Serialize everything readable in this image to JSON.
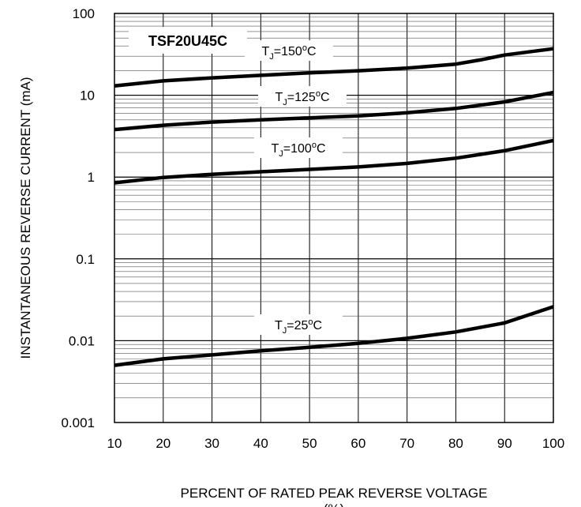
{
  "chart_data": {
    "type": "line",
    "title": "TSF20U45C",
    "xlabel": "PERCENT OF RATED PEAK REVERSE VOLTAGE",
    "xlabel_line2": "(%)",
    "ylabel": "INSTANTANEOUS REVERSE CURRENT (mA)",
    "x_scale": "linear",
    "y_scale": "log",
    "xlim": [
      10,
      100
    ],
    "ylim": [
      0.001,
      100
    ],
    "x_ticks": [
      "10",
      "20",
      "30",
      "40",
      "50",
      "60",
      "70",
      "80",
      "90",
      "100"
    ],
    "y_ticks": [
      "0.001",
      "0.01",
      "0.1",
      "1",
      "10",
      "100"
    ],
    "grid": true,
    "series": [
      {
        "name": "TJ=150oC",
        "label_main": "T",
        "label_sub": "J",
        "label_rest": "=150",
        "label_sup": "o",
        "label_unit": "C",
        "x": [
          10,
          20,
          30,
          40,
          50,
          60,
          70,
          80,
          85,
          90,
          100
        ],
        "y": [
          13,
          15,
          16.3,
          17.5,
          18.8,
          19.9,
          21.5,
          24,
          27,
          31,
          37
        ]
      },
      {
        "name": "TJ=125oC",
        "label_main": "T",
        "label_sub": "J",
        "label_rest": "=125",
        "label_sup": "o",
        "label_unit": "C",
        "x": [
          10,
          20,
          30,
          40,
          50,
          60,
          70,
          80,
          90,
          100
        ],
        "y": [
          3.8,
          4.3,
          4.7,
          5,
          5.3,
          5.6,
          6.1,
          6.9,
          8.3,
          10.8
        ]
      },
      {
        "name": "TJ=100oC",
        "label_main": "T",
        "label_sub": "J",
        "label_rest": "=100",
        "label_sup": "o",
        "label_unit": "C",
        "x": [
          10,
          20,
          30,
          40,
          50,
          60,
          70,
          80,
          90,
          100
        ],
        "y": [
          0.85,
          0.99,
          1.08,
          1.16,
          1.24,
          1.33,
          1.47,
          1.7,
          2.1,
          2.8
        ]
      },
      {
        "name": "TJ=25oC",
        "label_main": "T",
        "label_sub": "J",
        "label_rest": "=25",
        "label_sup": "o",
        "label_unit": "C",
        "x": [
          10,
          20,
          30,
          40,
          50,
          60,
          70,
          80,
          90,
          100
        ],
        "y": [
          0.005,
          0.006,
          0.0067,
          0.0075,
          0.0083,
          0.0093,
          0.0107,
          0.0128,
          0.0165,
          0.026
        ]
      }
    ]
  }
}
